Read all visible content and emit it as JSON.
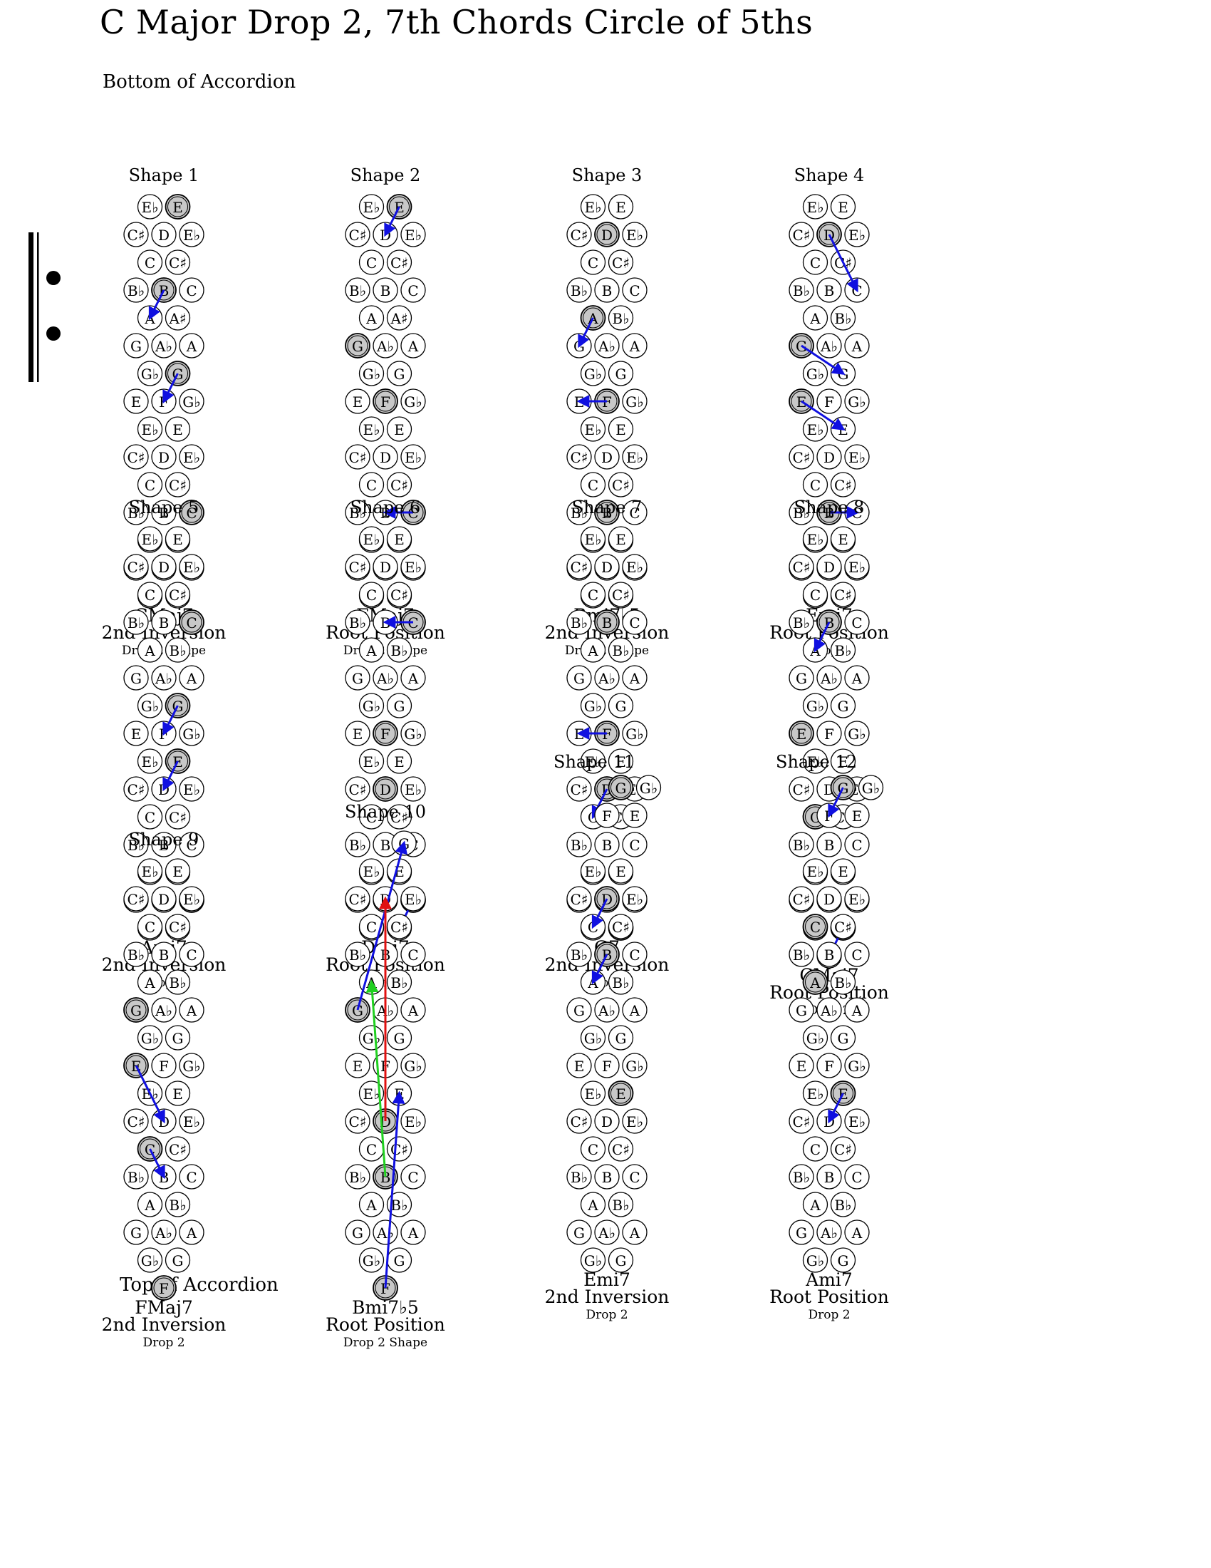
{
  "page": {
    "title": "C Major Drop 2, 7th Chords Circle of 5ths",
    "bottom_label": "Bottom of Accordion",
    "top_label": "Top of Accordion"
  },
  "colors": {
    "highlight": "#c8c8c8",
    "arrow_primary": "#1010e0",
    "arrow_red": "#e01010",
    "arrow_green": "#20d020"
  },
  "base_board": [
    [
      "Eb",
      "E"
    ],
    [
      "C#",
      "D",
      "Eb"
    ],
    [
      "C",
      "C#"
    ],
    [
      "Bb",
      "B",
      "C"
    ],
    [
      "A",
      "Bb"
    ],
    [
      "G",
      "Ab",
      "A"
    ],
    [
      "Gb",
      "G"
    ],
    [
      "E",
      "F",
      "Gb"
    ],
    [
      "Eb",
      "E"
    ],
    [
      "C#",
      "D",
      "Eb"
    ],
    [
      "C",
      "C#"
    ],
    [
      "Bb",
      "B",
      "C"
    ],
    [
      "A",
      "Bb"
    ],
    [
      "G",
      "Ab",
      "A"
    ],
    [
      "Gb",
      "G"
    ]
  ],
  "shapes": [
    {
      "title": "Shape 1",
      "chord": "CMaj7",
      "position": "2nd Inversion",
      "drop": "Drop 2 Shape",
      "board": "base",
      "overrides": [
        {
          "row": 3,
          "index": 1,
          "label": "B"
        },
        {
          "row": 4,
          "index": 0,
          "label": "A"
        },
        {
          "row": 4,
          "index": 1,
          "label": "A#"
        }
      ],
      "highlights": [
        [
          0,
          1
        ],
        [
          3,
          1
        ],
        [
          6,
          1
        ],
        [
          11,
          2
        ]
      ],
      "arrows": [
        {
          "from": [
            3,
            1
          ],
          "to": [
            4,
            0
          ],
          "color": "blue"
        },
        {
          "from": [
            6,
            1
          ],
          "to": [
            7,
            1
          ],
          "color": "blue"
        }
      ]
    },
    {
      "title": "Shape 2",
      "chord": "FMaj7",
      "position": "Root Position",
      "drop": "Drop 2 Shape",
      "board": "base",
      "overrides": [
        {
          "row": 1,
          "index": 1,
          "label": "D"
        },
        {
          "row": 4,
          "index": 1,
          "label": "A#"
        }
      ],
      "highlights": [
        [
          0,
          1
        ],
        [
          5,
          0
        ],
        [
          7,
          1
        ],
        [
          11,
          2
        ]
      ],
      "arrows": [
        {
          "from": [
            0,
            1
          ],
          "to": [
            1,
            1
          ],
          "color": "blue"
        },
        {
          "from": [
            11,
            2
          ],
          "to": [
            11,
            1
          ],
          "color": "blue"
        }
      ]
    },
    {
      "title": "Shape 3",
      "chord": "Bmi7b5",
      "position": "2nd Inversion",
      "drop": "Drop 2 Shape",
      "board": "base",
      "highlights": [
        [
          1,
          1
        ],
        [
          4,
          0
        ],
        [
          7,
          1
        ],
        [
          11,
          1
        ]
      ],
      "arrows": [
        {
          "from": [
            4,
            0
          ],
          "to": [
            5,
            0
          ],
          "color": "blue"
        },
        {
          "from": [
            7,
            1
          ],
          "to": [
            7,
            0
          ],
          "color": "blue"
        }
      ]
    },
    {
      "title": "Shape 4",
      "chord": "Emi7",
      "position": "Root Position",
      "drop": "Drop 2",
      "board": "base",
      "highlights": [
        [
          1,
          1
        ],
        [
          5,
          0
        ],
        [
          7,
          0
        ],
        [
          11,
          1
        ]
      ],
      "arrows": [
        {
          "from": [
            1,
            1
          ],
          "to": [
            3,
            2
          ],
          "color": "blue"
        },
        {
          "from": [
            5,
            0
          ],
          "to": [
            6,
            1
          ],
          "color": "blue"
        },
        {
          "from": [
            7,
            0
          ],
          "to": [
            8,
            1
          ],
          "color": "blue"
        },
        {
          "from": [
            11,
            1
          ],
          "to": [
            11,
            2
          ],
          "color": "blue"
        }
      ]
    },
    {
      "title": "Shape 5",
      "chord": "Ami7",
      "position": "2nd Inversion",
      "drop": "Drop 2",
      "board": "base",
      "highlights": [
        [
          3,
          2
        ],
        [
          6,
          1
        ],
        [
          8,
          1
        ],
        [
          13,
          2
        ]
      ],
      "arrows": [
        {
          "from": [
            6,
            1
          ],
          "to": [
            7,
            1
          ],
          "color": "blue"
        },
        {
          "from": [
            8,
            1
          ],
          "to": [
            9,
            1
          ],
          "color": "blue"
        }
      ]
    },
    {
      "title": "Shape 6",
      "chord": "Dmi7",
      "position": "Root Position",
      "drop": "Drop 2",
      "board": "base",
      "highlights": [
        [
          3,
          2
        ],
        [
          7,
          1
        ],
        [
          9,
          1
        ],
        [
          13,
          2
        ]
      ],
      "arrows": [
        {
          "from": [
            3,
            2
          ],
          "to": [
            3,
            1
          ],
          "color": "blue"
        },
        {
          "from": [
            13,
            2
          ],
          "to": [
            14,
            1
          ],
          "color": "blue"
        }
      ]
    },
    {
      "title": "Shape 7",
      "chord": "G7",
      "position": "2nd Inversion",
      "drop": "Drop 2",
      "board": "base",
      "highlights": [
        [
          3,
          1
        ],
        [
          7,
          1
        ],
        [
          9,
          1
        ],
        [
          14,
          1
        ]
      ],
      "arrows": [
        {
          "from": [
            7,
            1
          ],
          "to": [
            7,
            0
          ],
          "color": "blue"
        },
        {
          "from": [
            9,
            1
          ],
          "to": [
            10,
            0
          ],
          "color": "blue"
        }
      ]
    },
    {
      "title": "Shape 8",
      "chord": "CMaj7",
      "position": "Root Position",
      "drop": "Drop 2",
      "board": "base",
      "extra_bottom": [
        "F"
      ],
      "highlights": [
        [
          3,
          1
        ],
        [
          7,
          0
        ],
        [
          10,
          0
        ],
        [
          14,
          1
        ]
      ],
      "arrows": [
        {
          "from": [
            3,
            1
          ],
          "to": [
            4,
            0
          ],
          "color": "blue"
        },
        {
          "from": [
            14,
            1
          ],
          "to": [
            15,
            0
          ],
          "color": "blue"
        }
      ]
    },
    {
      "title": "Shape 9",
      "chord": "FMaj7",
      "position": "2nd Inversion",
      "drop": "Drop 2",
      "board": "base",
      "extra_bottom": [
        "F"
      ],
      "highlights": [
        [
          5,
          0
        ],
        [
          7,
          0
        ],
        [
          10,
          0
        ],
        [
          15,
          0
        ]
      ],
      "arrows": [
        {
          "from": [
            7,
            0
          ],
          "to": [
            9,
            1
          ],
          "color": "blue"
        },
        {
          "from": [
            10,
            0
          ],
          "to": [
            11,
            1
          ],
          "color": "blue"
        }
      ]
    },
    {
      "title": "Shape 10",
      "chord": "Bmi7b5",
      "position": "Root Position",
      "drop": "Drop 2 Shape",
      "board": "base",
      "extra_top": [
        "G"
      ],
      "extra_bottom": [
        "F"
      ],
      "highlights": [
        [
          5,
          0
        ],
        [
          9,
          1
        ],
        [
          11,
          1
        ],
        [
          15,
          0
        ]
      ],
      "arrows": [
        {
          "from": [
            5,
            0
          ],
          "to": [
            -1,
            0
          ],
          "color": "blue"
        },
        {
          "from": [
            15,
            0
          ],
          "to": [
            8,
            1
          ],
          "color": "blue"
        },
        {
          "from": [
            9,
            1
          ],
          "to": [
            1,
            1
          ],
          "color": "red"
        },
        {
          "from": [
            11,
            1
          ],
          "to": [
            4,
            0
          ],
          "color": "green"
        }
      ]
    },
    {
      "title": "Shape 11",
      "chord": "Emi7",
      "position": "2nd Inversion",
      "drop": "Drop 2",
      "board": "top3",
      "highlights": [
        [
          -3,
          0
        ],
        [
          1,
          1
        ],
        [
          3,
          1
        ],
        [
          8,
          1
        ]
      ],
      "arrows": [
        {
          "from": [
            1,
            1
          ],
          "to": [
            2,
            0
          ],
          "color": "blue"
        },
        {
          "from": [
            3,
            1
          ],
          "to": [
            4,
            0
          ],
          "color": "blue"
        }
      ]
    },
    {
      "title": "Shape 12",
      "chord": "Ami7",
      "position": "Root Position",
      "drop": "Drop 2",
      "board": "top3",
      "highlights": [
        [
          -3,
          0
        ],
        [
          2,
          0
        ],
        [
          4,
          0
        ],
        [
          8,
          1
        ]
      ],
      "arrows": [
        {
          "from": [
            -3,
            0
          ],
          "to": [
            -2,
            0
          ],
          "color": "blue"
        },
        {
          "from": [
            8,
            1
          ],
          "to": [
            9,
            1
          ],
          "color": "blue"
        }
      ]
    }
  ]
}
